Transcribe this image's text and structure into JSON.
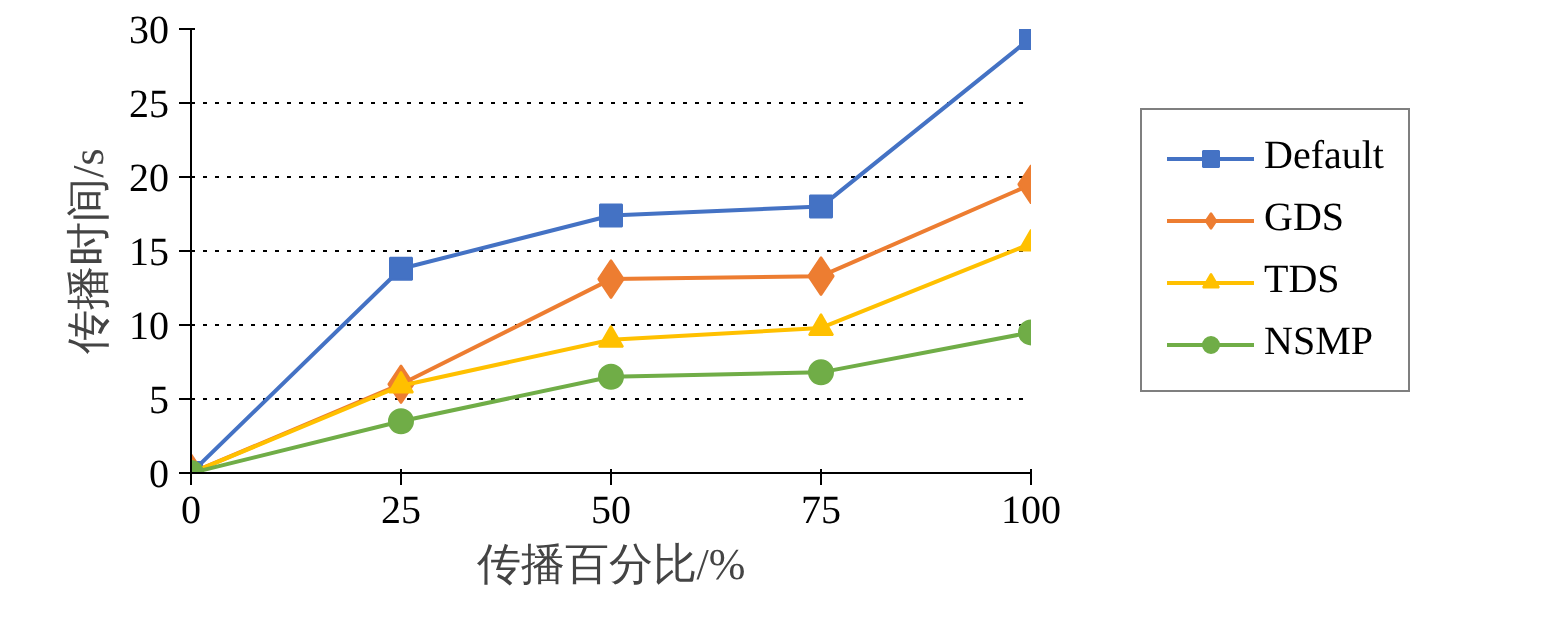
{
  "chart_data": {
    "type": "line",
    "xlabel": "传播百分比/%",
    "ylabel": "传播时间/s",
    "x": [
      0,
      25,
      50,
      75,
      100
    ],
    "series": [
      {
        "name": "Default",
        "color": "#4472c4",
        "marker": "square",
        "values": [
          0,
          13.8,
          17.4,
          18.0,
          29.4
        ]
      },
      {
        "name": "GDS",
        "color": "#ed7d31",
        "marker": "diamond",
        "values": [
          0,
          6.0,
          13.1,
          13.3,
          19.5
        ]
      },
      {
        "name": "TDS",
        "color": "#ffc000",
        "marker": "triangle",
        "values": [
          0,
          5.9,
          9.0,
          9.8,
          15.5
        ]
      },
      {
        "name": "NSMP",
        "color": "#70ad47",
        "marker": "circle",
        "values": [
          0,
          3.5,
          6.5,
          6.8,
          9.5
        ]
      }
    ],
    "xlim": [
      0,
      100
    ],
    "ylim": [
      0,
      30
    ],
    "xticks": [
      0,
      25,
      50,
      75,
      100
    ],
    "yticks": [
      0,
      5,
      10,
      15,
      20,
      25,
      30
    ],
    "grid": "y",
    "legend": "right",
    "line_style": "solid"
  }
}
